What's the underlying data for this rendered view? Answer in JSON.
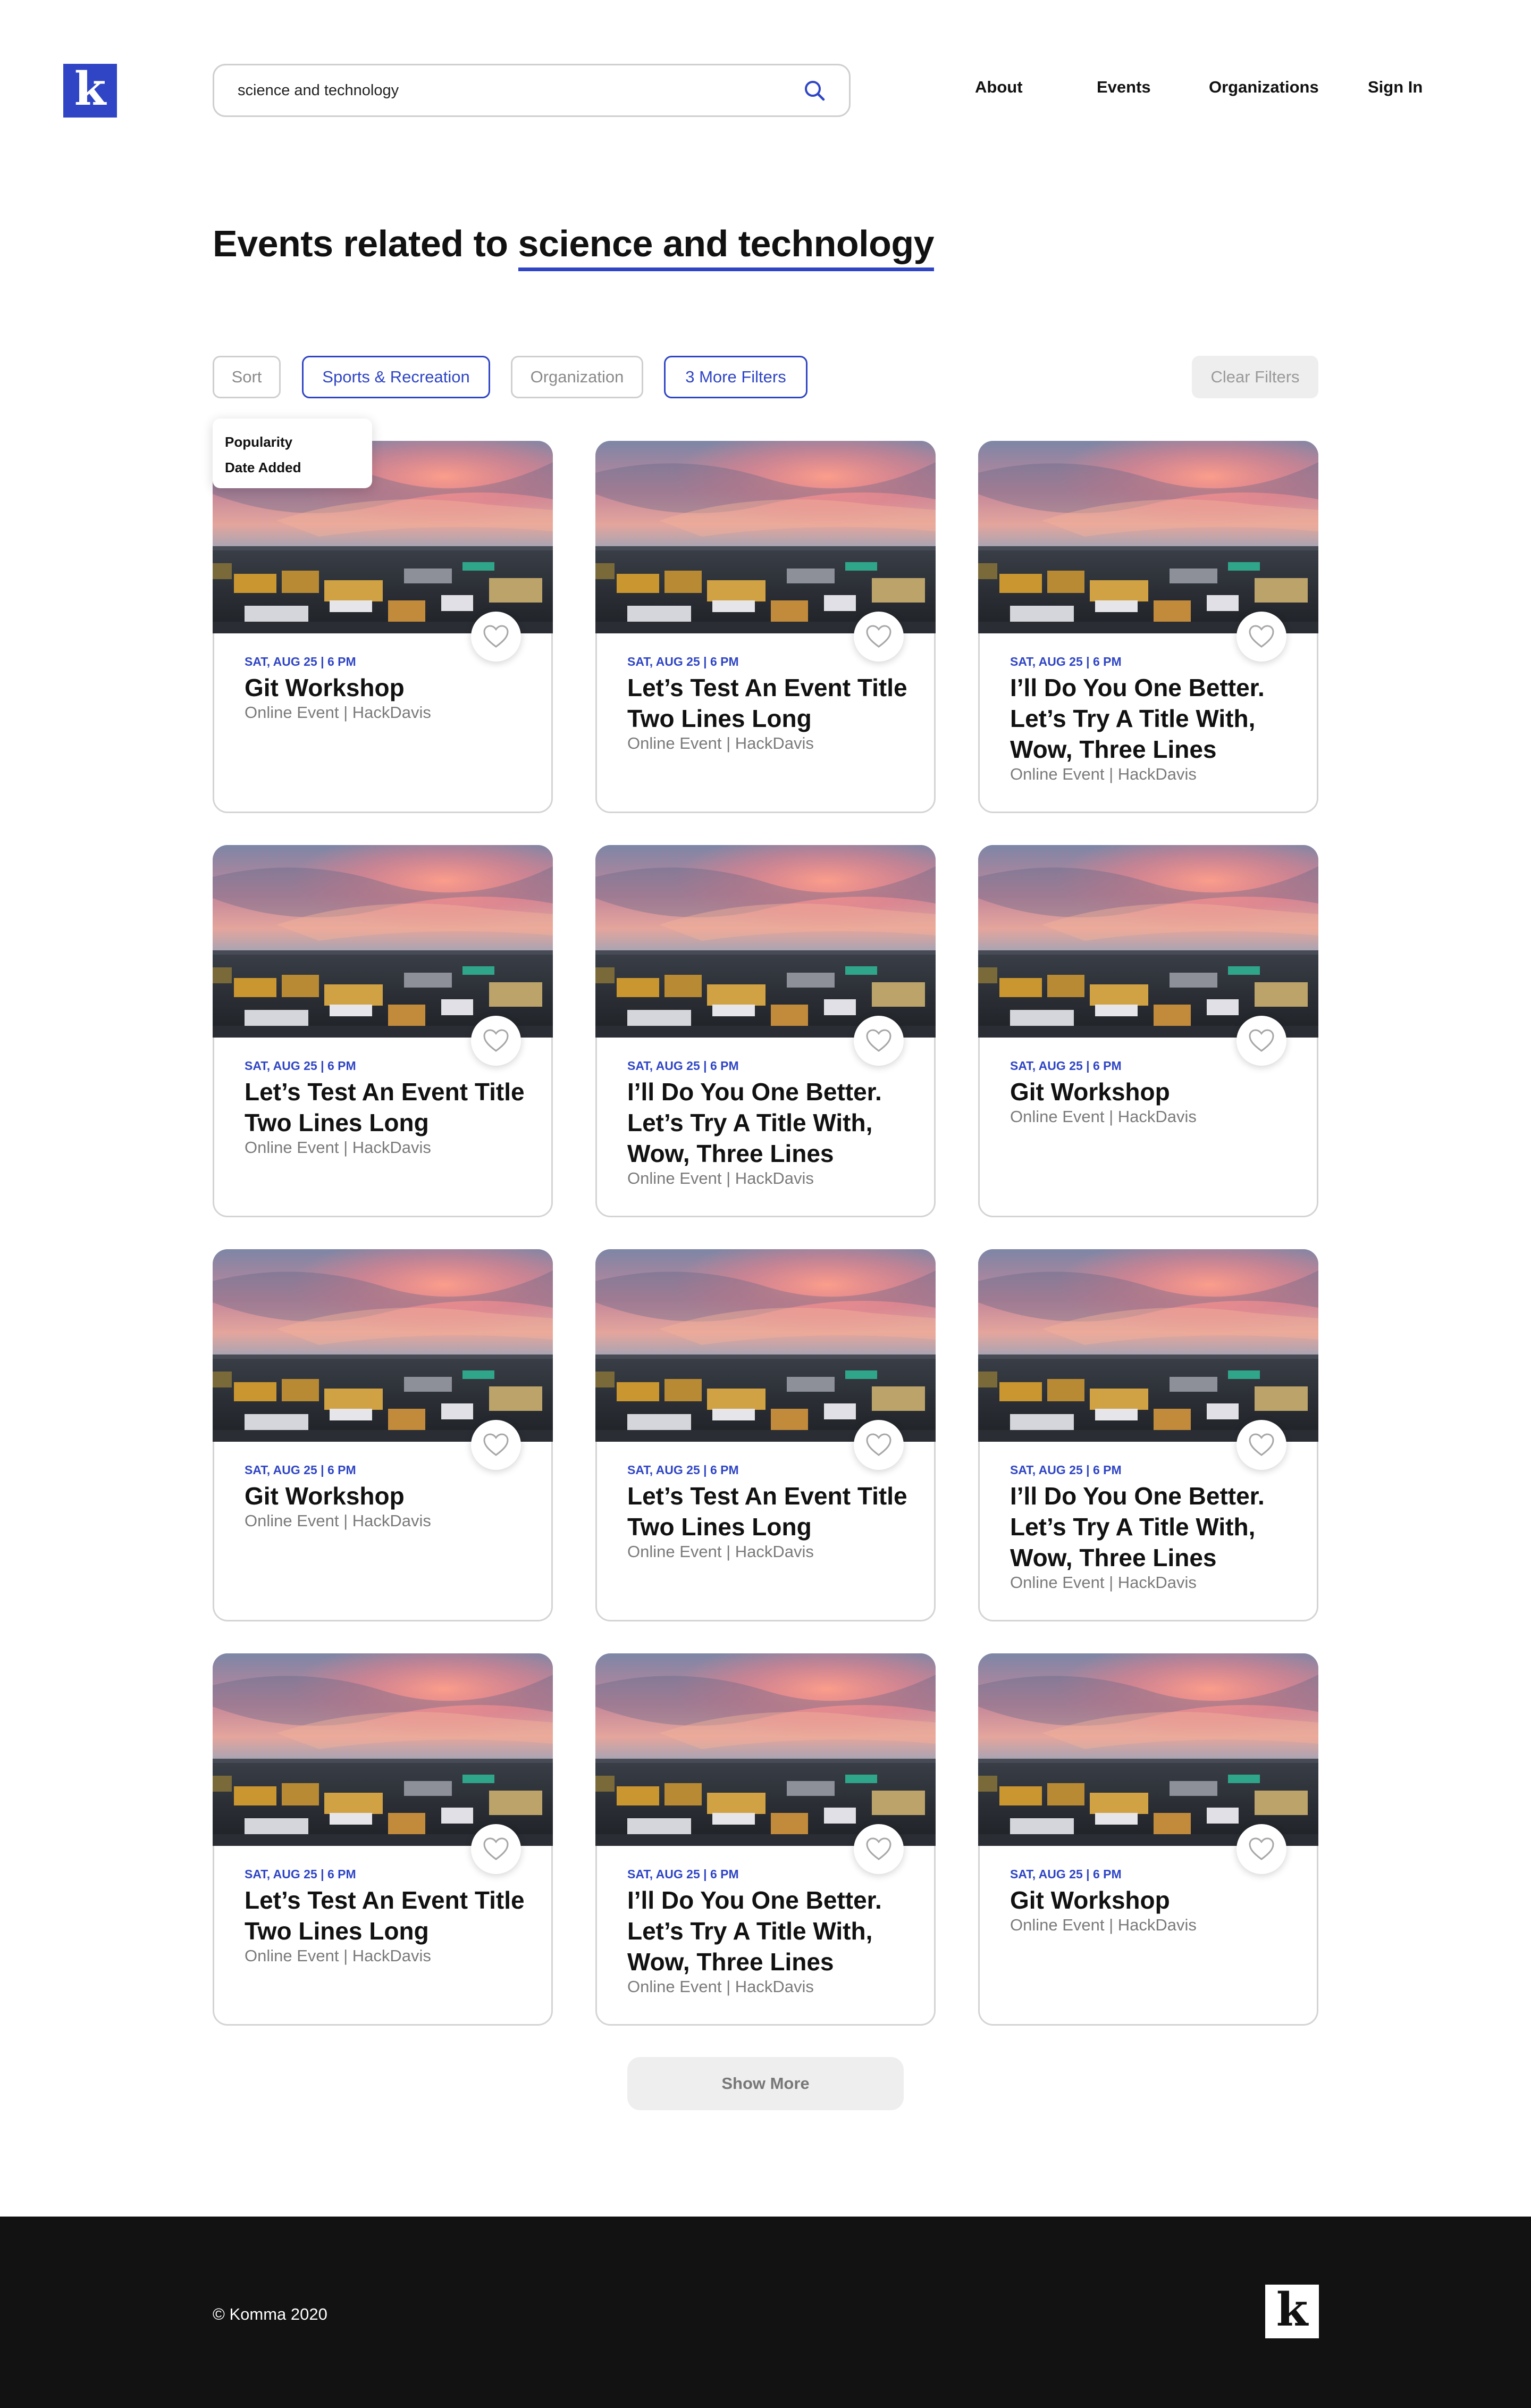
{
  "header": {
    "logo_letter": "k",
    "search_value": "science and technology",
    "nav": [
      "About",
      "Events",
      "Organizations",
      "Sign In"
    ]
  },
  "title": {
    "prefix": "Events related to ",
    "query": "science and technology"
  },
  "filters": {
    "sort": "Sort",
    "category": "Sports & Recreation",
    "organization": "Organization",
    "more": "3 More Filters",
    "clear": "Clear Filters"
  },
  "sort_menu": [
    "Popularity",
    "Date Added"
  ],
  "cards": [
    {
      "date": "SAT, AUG 25 | 6 PM",
      "title": "Git Workshop",
      "meta": "Online Event | HackDavis"
    },
    {
      "date": "SAT, AUG 25 | 6 PM",
      "title": "Let’s Test An Event Title Two Lines Long",
      "meta": "Online Event | HackDavis"
    },
    {
      "date": "SAT, AUG 25 | 6 PM",
      "title": "I’ll Do You One Better. Let’s Try A Title With, Wow, Three Lines",
      "meta": "Online Event | HackDavis"
    },
    {
      "date": "SAT, AUG 25 | 6 PM",
      "title": "Let’s Test An Event Title Two Lines Long",
      "meta": "Online Event | HackDavis"
    },
    {
      "date": "SAT, AUG 25 | 6 PM",
      "title": "I’ll Do You One Better. Let’s Try A Title With, Wow, Three Lines",
      "meta": "Online Event | HackDavis"
    },
    {
      "date": "SAT, AUG 25 | 6 PM",
      "title": "Git Workshop",
      "meta": "Online Event | HackDavis"
    },
    {
      "date": "SAT, AUG 25 | 6 PM",
      "title": "Git Workshop",
      "meta": "Online Event | HackDavis"
    },
    {
      "date": "SAT, AUG 25 | 6 PM",
      "title": "Let’s Test An Event Title Two Lines Long",
      "meta": "Online Event | HackDavis"
    },
    {
      "date": "SAT, AUG 25 | 6 PM",
      "title": "I’ll Do You One Better. Let’s Try A Title With, Wow, Three Lines",
      "meta": "Online Event | HackDavis"
    },
    {
      "date": "SAT, AUG 25 | 6 PM",
      "title": "Let’s Test An Event Title Two Lines Long",
      "meta": "Online Event | HackDavis"
    },
    {
      "date": "SAT, AUG 25 | 6 PM",
      "title": "I’ll Do You One Better. Let’s Try A Title With, Wow, Three Lines",
      "meta": "Online Event | HackDavis"
    },
    {
      "date": "SAT, AUG 25 | 6 PM",
      "title": "Git Workshop",
      "meta": "Online Event | HackDavis"
    }
  ],
  "show_more": "Show More",
  "footer": {
    "copyright": "© Komma 2020",
    "logo_letter": "k"
  },
  "colors": {
    "accent": "#2f45c5",
    "footer_bg": "#121212"
  }
}
